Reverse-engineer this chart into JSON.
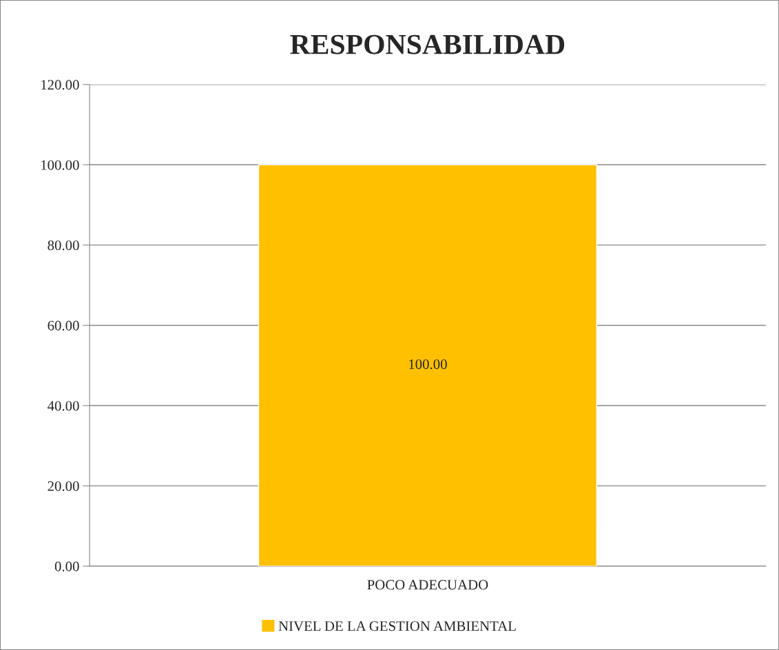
{
  "chart_data": {
    "type": "bar",
    "title": "RESPONSABILIDAD",
    "categories": [
      "POCO ADECUADO"
    ],
    "series": [
      {
        "name": "NIVEL DE LA GESTION AMBIENTAL",
        "color": "#ffc000",
        "values": [
          100
        ],
        "value_labels": [
          "100.00"
        ]
      }
    ],
    "ylim": [
      0,
      120
    ],
    "yticks": [
      {
        "value": 0,
        "label": "0.00"
      },
      {
        "value": 20,
        "label": "20.00"
      },
      {
        "value": 40,
        "label": "40.00"
      },
      {
        "value": 60,
        "label": "60.00"
      },
      {
        "value": 80,
        "label": "80.00"
      },
      {
        "value": 100,
        "label": "100.00"
      },
      {
        "value": 120,
        "label": "120.00"
      }
    ],
    "grid": "y",
    "legend": "bottom"
  }
}
